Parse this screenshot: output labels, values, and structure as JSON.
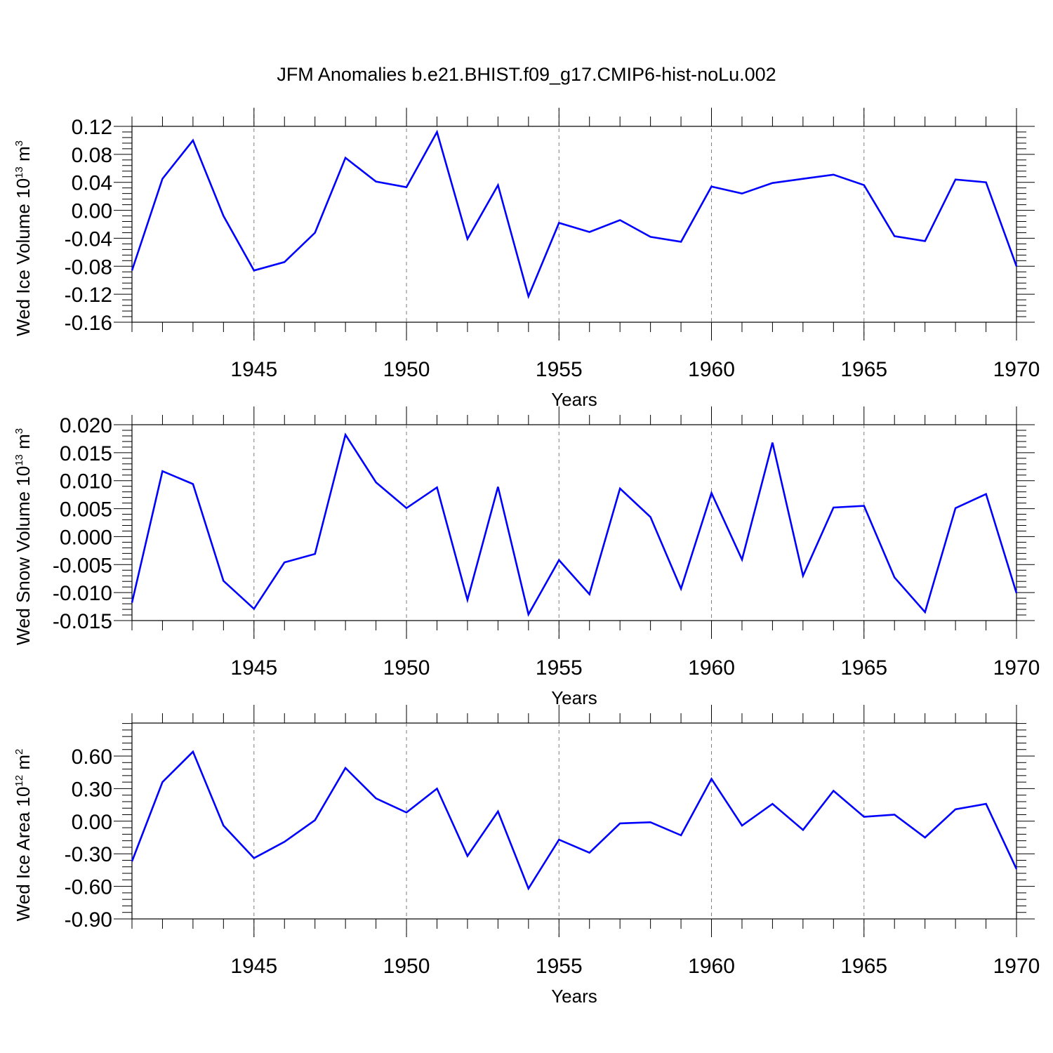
{
  "figure": {
    "title": "JFM Anomalies b.e21.BHIST.f09_g17.CMIP6-hist-noLu.002",
    "line_color": "#0000ff",
    "grid_color": "#7f7f7f"
  },
  "chart_data": [
    {
      "type": "line",
      "ylabel_base": "Wed Ice Volume 10",
      "ylabel_exp": "13",
      "ylabel_unit": " m",
      "ylabel_unit_exp": "3",
      "xlabel": "Years",
      "xlim": [
        1941,
        1970
      ],
      "ylim": [
        -0.16,
        0.12
      ],
      "yticks": [
        0.12,
        0.08,
        0.04,
        0.0,
        -0.04,
        -0.08,
        -0.12,
        -0.16
      ],
      "ytick_labels": [
        "0.12",
        "0.08",
        "0.04",
        "0.00",
        "-0.04",
        "-0.08",
        "-0.12",
        "-0.16"
      ],
      "xticks": [
        1945,
        1950,
        1955,
        1960,
        1965,
        1970
      ],
      "xtick_labels": [
        "1945",
        "1950",
        "1955",
        "1960",
        "1965",
        "1970"
      ],
      "grid_x": [
        1945,
        1950,
        1955,
        1960,
        1965
      ],
      "x": [
        1941,
        1942,
        1943,
        1944,
        1945,
        1946,
        1947,
        1948,
        1949,
        1950,
        1951,
        1952,
        1953,
        1954,
        1955,
        1956,
        1957,
        1958,
        1959,
        1960,
        1961,
        1962,
        1963,
        1964,
        1965,
        1966,
        1967,
        1968,
        1969,
        1970
      ],
      "values": [
        -0.086,
        0.045,
        0.1,
        -0.008,
        -0.086,
        -0.074,
        -0.032,
        0.075,
        0.041,
        0.033,
        0.112,
        -0.041,
        0.036,
        -0.123,
        -0.018,
        -0.031,
        -0.014,
        -0.038,
        -0.045,
        0.034,
        0.024,
        0.039,
        0.045,
        0.051,
        0.036,
        -0.037,
        -0.044,
        0.044,
        0.04,
        -0.08
      ]
    },
    {
      "type": "line",
      "ylabel_base": "Wed Snow Volume 10",
      "ylabel_exp": "13",
      "ylabel_unit": " m",
      "ylabel_unit_exp": "3",
      "xlabel": "Years",
      "xlim": [
        1941,
        1970
      ],
      "ylim": [
        -0.015,
        0.02
      ],
      "yticks": [
        0.02,
        0.015,
        0.01,
        0.005,
        0.0,
        -0.005,
        -0.01,
        -0.015
      ],
      "ytick_labels": [
        "0.020",
        "0.015",
        "0.010",
        "0.005",
        "0.000",
        "-0.005",
        "-0.010",
        "-0.015"
      ],
      "xticks": [
        1945,
        1950,
        1955,
        1960,
        1965,
        1970
      ],
      "xtick_labels": [
        "1945",
        "1950",
        "1955",
        "1960",
        "1965",
        "1970"
      ],
      "grid_x": [
        1945,
        1950,
        1955,
        1960,
        1965
      ],
      "x": [
        1941,
        1942,
        1943,
        1944,
        1945,
        1946,
        1947,
        1948,
        1949,
        1950,
        1951,
        1952,
        1953,
        1954,
        1955,
        1956,
        1957,
        1958,
        1959,
        1960,
        1961,
        1962,
        1963,
        1964,
        1965,
        1966,
        1967,
        1968,
        1969,
        1970
      ],
      "values": [
        -0.0118,
        0.0117,
        0.0094,
        -0.0079,
        -0.0129,
        -0.0046,
        -0.0031,
        0.0182,
        0.0097,
        0.0051,
        0.0088,
        -0.0113,
        0.0089,
        -0.0139,
        -0.0042,
        -0.0103,
        0.0086,
        0.0035,
        -0.0093,
        0.0078,
        -0.0041,
        0.0168,
        -0.007,
        0.0052,
        0.0055,
        -0.0073,
        -0.0135,
        0.0051,
        0.0076,
        -0.0101
      ]
    },
    {
      "type": "line",
      "ylabel_base": "Wed Ice Area 10",
      "ylabel_exp": "12",
      "ylabel_unit": " m",
      "ylabel_unit_exp": "2",
      "xlabel": "Years",
      "xlim": [
        1941,
        1970
      ],
      "ylim": [
        -0.9,
        0.9
      ],
      "yticks": [
        0.6,
        0.3,
        0.0,
        -0.3,
        -0.6,
        -0.9
      ],
      "ytick_labels": [
        "0.60",
        "0.30",
        "0.00",
        "-0.30",
        "-0.60",
        "-0.90"
      ],
      "xticks": [
        1945,
        1950,
        1955,
        1960,
        1965,
        1970
      ],
      "xtick_labels": [
        "1945",
        "1950",
        "1955",
        "1960",
        "1965",
        "1970"
      ],
      "grid_x": [
        1945,
        1950,
        1955,
        1960,
        1965
      ],
      "x": [
        1941,
        1942,
        1943,
        1944,
        1945,
        1946,
        1947,
        1948,
        1949,
        1950,
        1951,
        1952,
        1953,
        1954,
        1955,
        1956,
        1957,
        1958,
        1959,
        1960,
        1961,
        1962,
        1963,
        1964,
        1965,
        1966,
        1967,
        1968,
        1969,
        1970
      ],
      "values": [
        -0.37,
        0.36,
        0.64,
        -0.04,
        -0.34,
        -0.19,
        0.01,
        0.49,
        0.21,
        0.08,
        0.3,
        -0.32,
        0.09,
        -0.62,
        -0.17,
        -0.29,
        -0.02,
        -0.01,
        -0.13,
        0.39,
        -0.04,
        0.16,
        -0.08,
        0.28,
        0.04,
        0.06,
        -0.15,
        0.11,
        0.16,
        -0.44
      ]
    }
  ]
}
